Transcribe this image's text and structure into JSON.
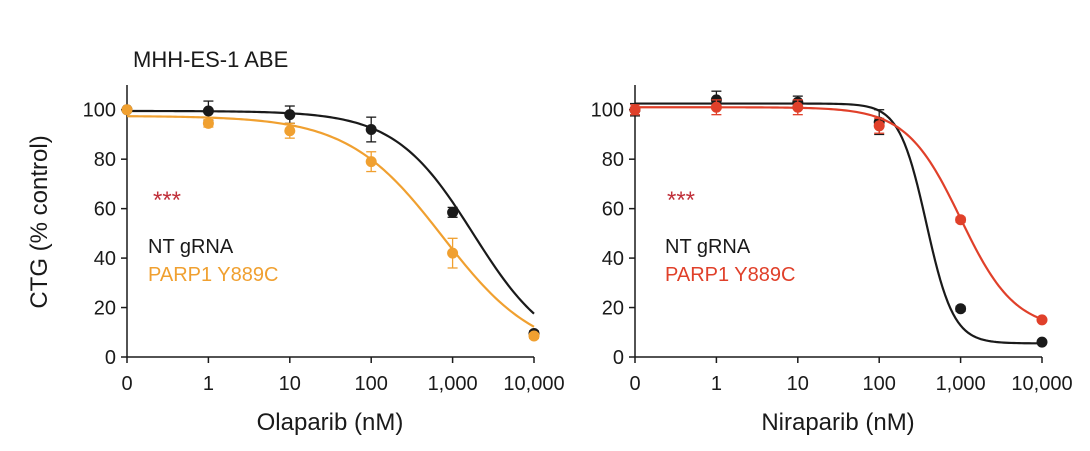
{
  "chart_data": [
    {
      "type": "line",
      "title": "MHH-ES-1 ABE",
      "xlabel": "Olaparib (nM)",
      "ylabel": "CTG (% control)",
      "x_scale": "log (0 shown at first position)",
      "x_ticks": [
        "0",
        "1",
        "10",
        "100",
        "1,000",
        "10,000"
      ],
      "x": [
        0,
        1,
        10,
        100,
        1000,
        10000
      ],
      "y_ticks": [
        "0",
        "20",
        "40",
        "60",
        "80",
        "100"
      ],
      "ylim": [
        0,
        110
      ],
      "grid": false,
      "significance": "***",
      "series": [
        {
          "name": "NT gRNA",
          "color": "#1a1a1a",
          "values": [
            100,
            99.5,
            98,
            92,
            58.5,
            9.5
          ],
          "errors": [
            0,
            4,
            3.5,
            5,
            2,
            1
          ],
          "fit": {
            "top": 99.5,
            "bottom": 0,
            "ec50": 1800,
            "hill": 0.9
          }
        },
        {
          "name": "PARP1 Y889C",
          "color": "#f0a030",
          "values": [
            100,
            94.5,
            91.5,
            79,
            42,
            8.5
          ],
          "errors": [
            0,
            1.5,
            3,
            4,
            6,
            1
          ],
          "fit": {
            "top": 97.5,
            "bottom": 0,
            "ec50": 750,
            "hill": 0.75
          }
        }
      ]
    },
    {
      "type": "line",
      "title": "",
      "xlabel": "Niraparib (nM)",
      "ylabel": "",
      "x_scale": "log (0 shown at first position)",
      "x_ticks": [
        "0",
        "1",
        "10",
        "100",
        "1,000",
        "10,000"
      ],
      "x": [
        0,
        1,
        10,
        100,
        1000,
        10000
      ],
      "y_ticks": [
        "0",
        "20",
        "40",
        "60",
        "80",
        "100"
      ],
      "ylim": [
        0,
        110
      ],
      "grid": false,
      "significance": "***",
      "series": [
        {
          "name": "NT gRNA",
          "color": "#1a1a1a",
          "values": [
            100,
            104,
            103,
            95,
            19.5,
            6
          ],
          "errors": [
            2.5,
            3.5,
            2.5,
            5,
            1,
            0.5
          ],
          "fit": {
            "top": 102.5,
            "bottom": 5.5,
            "ec50": 380,
            "hill": 2.6
          }
        },
        {
          "name": "PARP1 Y889C",
          "color": "#e0402a",
          "values": [
            100,
            101,
            101,
            93.5,
            55.5,
            15
          ],
          "errors": [
            2,
            3,
            3,
            3,
            1,
            0.5
          ],
          "fit": {
            "top": 101,
            "bottom": 11,
            "ec50": 1000,
            "hill": 1.3
          }
        }
      ]
    }
  ],
  "panels": [
    {
      "title": "MHH-ES-1 ABE",
      "xlabel": "Olaparib (nM)",
      "ylabel": "CTG (% control)",
      "sig": "***",
      "legend": [
        {
          "label": "NT gRNA",
          "color": "#1a1a1a"
        },
        {
          "label": "PARP1 Y889C",
          "color": "#f0a030"
        }
      ]
    },
    {
      "title": "",
      "xlabel": "Niraparib (nM)",
      "ylabel": "",
      "sig": "***",
      "legend": [
        {
          "label": "NT gRNA",
          "color": "#1a1a1a"
        },
        {
          "label": "PARP1 Y889C",
          "color": "#e0402a"
        }
      ]
    }
  ],
  "colors": {
    "significance": "#c0303a",
    "axis": "#1a1a1a"
  }
}
